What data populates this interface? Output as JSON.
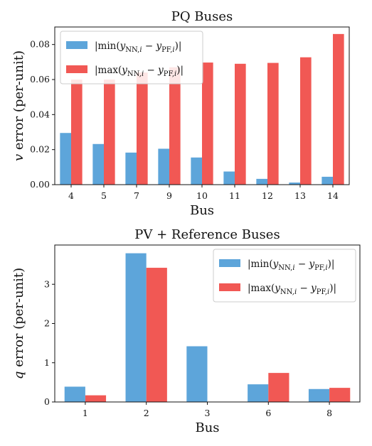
{
  "chart_data": [
    {
      "type": "bar",
      "title": "PQ Buses",
      "xlabel": "Bus",
      "ylabel": "v error (per-unit)",
      "ylabel_var": "v",
      "ylabel_rest": " error (per-unit)",
      "categories": [
        "4",
        "5",
        "7",
        "9",
        "10",
        "11",
        "12",
        "13",
        "14"
      ],
      "ylim": [
        0,
        0.09
      ],
      "yticks": [
        0.0,
        0.02,
        0.04,
        0.06,
        0.08
      ],
      "ytick_labels": [
        "0.00",
        "0.02",
        "0.04",
        "0.06",
        "0.08"
      ],
      "legend_position": "top-left",
      "series": [
        {
          "name": "|min(y_NN,i − y_PF,i)|",
          "legend_func": "min",
          "color": "#5DA5DA",
          "values": [
            0.0295,
            0.0232,
            0.0183,
            0.0205,
            0.0155,
            0.0075,
            0.0033,
            0.0012,
            0.0045
          ]
        },
        {
          "name": "|max(y_NN,i − y_PF,i)|",
          "legend_func": "max",
          "color": "#F15854",
          "values": [
            0.06,
            0.06,
            0.064,
            0.067,
            0.0697,
            0.069,
            0.0695,
            0.0727,
            0.086
          ]
        }
      ]
    },
    {
      "type": "bar",
      "title": "PV + Reference Buses",
      "xlabel": "Bus",
      "ylabel": "q error (per-unit)",
      "ylabel_var": "q",
      "ylabel_rest": " error (per-unit)",
      "categories": [
        "1",
        "2",
        "3",
        "6",
        "8"
      ],
      "ylim": [
        0,
        4.0
      ],
      "yticks": [
        0,
        1,
        2,
        3
      ],
      "ytick_labels": [
        "0",
        "1",
        "2",
        "3"
      ],
      "legend_position": "top-right",
      "series": [
        {
          "name": "|min(y_NN,i − y_PF,i)|",
          "legend_func": "min",
          "color": "#5DA5DA",
          "values": [
            0.39,
            3.79,
            1.42,
            0.45,
            0.33
          ]
        },
        {
          "name": "|max(y_NN,i − y_PF,i)|",
          "legend_func": "max",
          "color": "#F15854",
          "values": [
            0.17,
            3.42,
            0.0,
            0.74,
            0.36
          ]
        }
      ]
    }
  ]
}
